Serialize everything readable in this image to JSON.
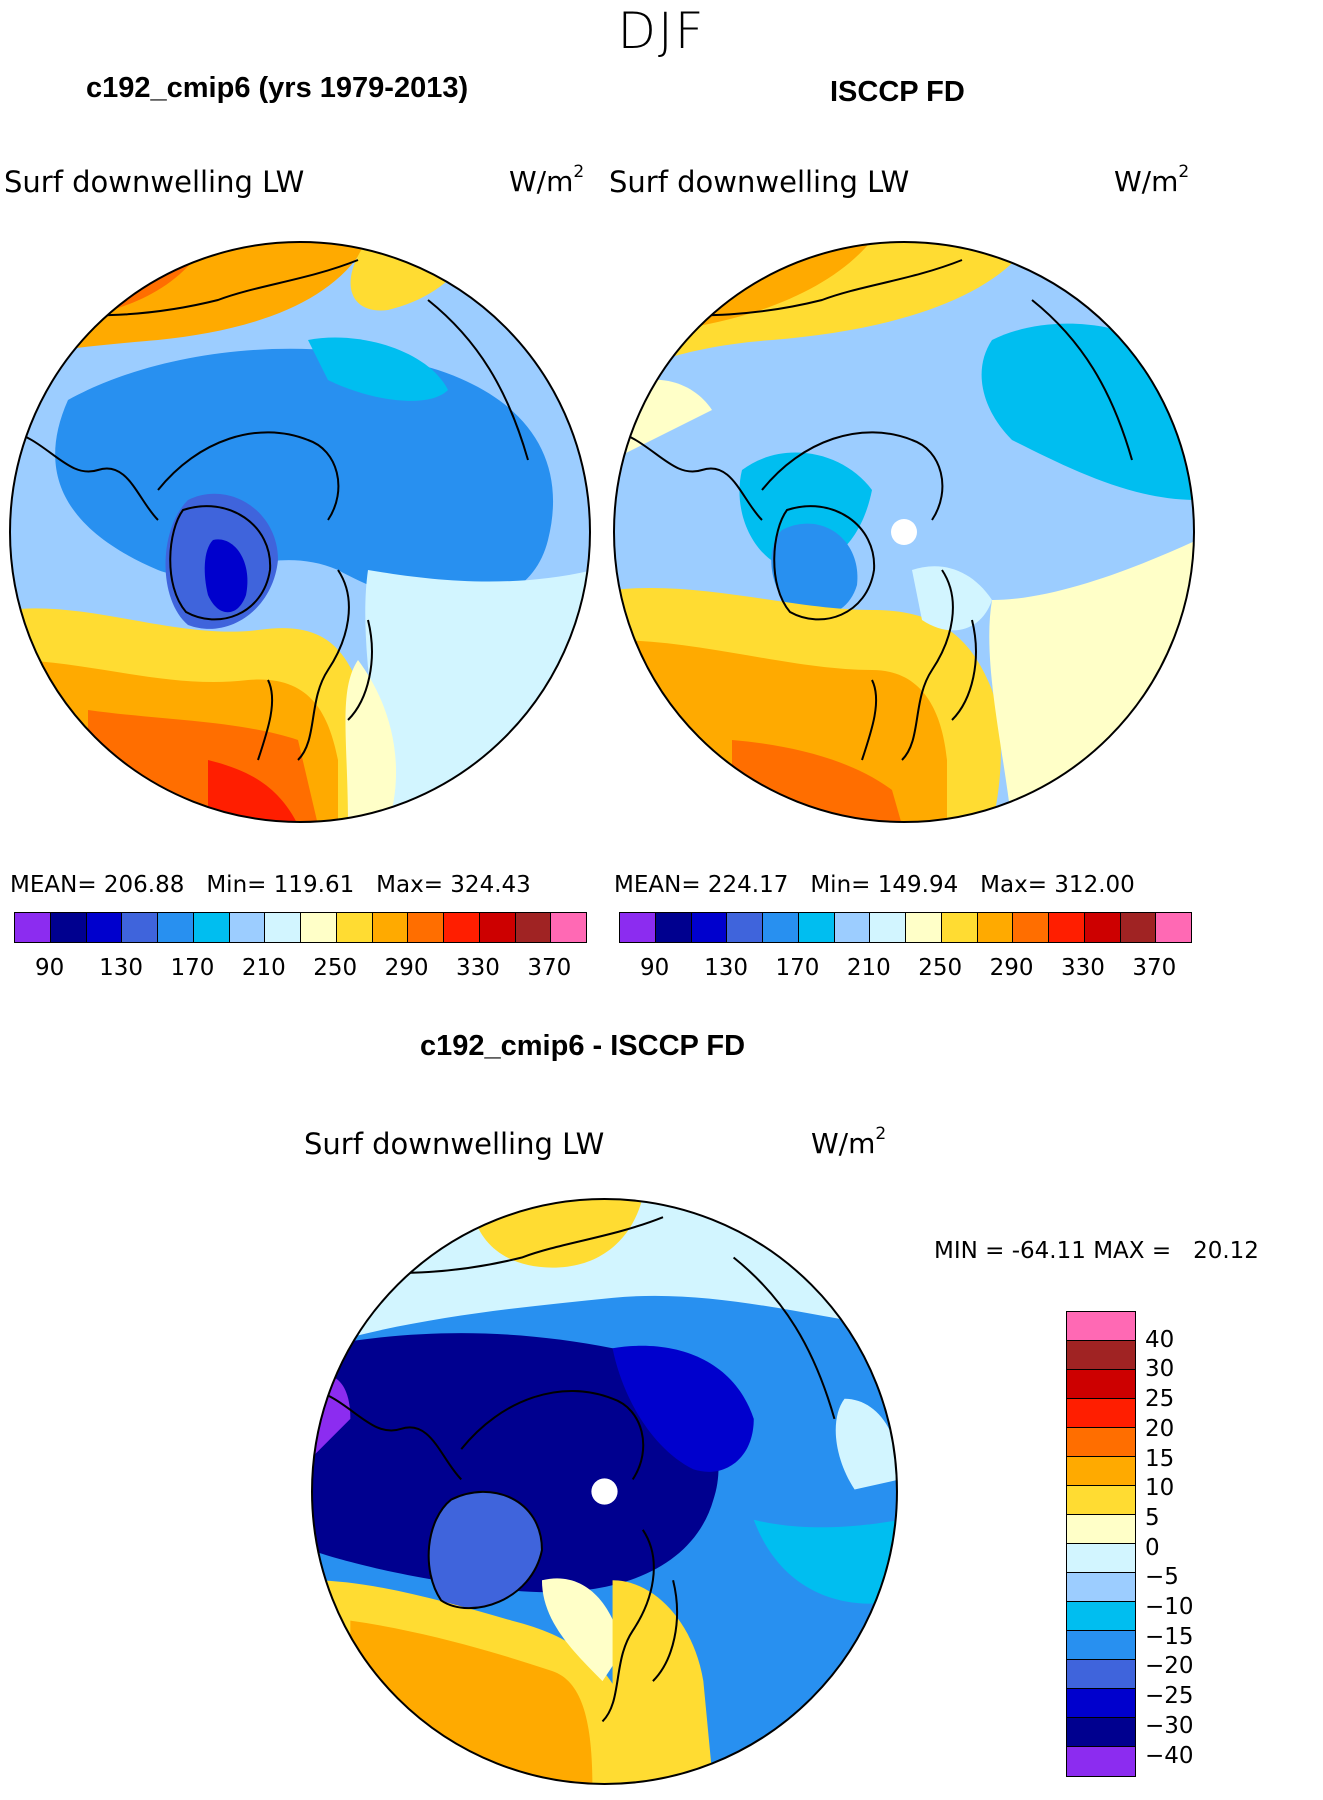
{
  "figure": {
    "season": "DJF"
  },
  "panels": {
    "model": {
      "title": "c192_cmip6 (yrs 1979-2013)",
      "variable": "Surf downwelling LW",
      "units_base": "W/m",
      "units_exp": "2",
      "mean_label": "MEAN=",
      "mean": "206.88",
      "min_label": "Min=",
      "min": "119.61",
      "max_label": "Max=",
      "max": "324.43"
    },
    "obs": {
      "title": "ISCCP FD",
      "variable": "Surf downwelling LW",
      "units_base": "W/m",
      "units_exp": "2",
      "mean_label": "MEAN=",
      "mean": "224.17",
      "min_label": "Min=",
      "min": "149.94",
      "max_label": "Max=",
      "max": "312.00"
    },
    "diff": {
      "title": "c192_cmip6 - ISCCP FD",
      "variable": "Surf downwelling LW",
      "units_base": "W/m",
      "units_exp": "2",
      "min_label": "MIN =",
      "min": "-64.11",
      "max_label": "MAX =",
      "max": "20.12"
    }
  },
  "colorbars": {
    "absolute": {
      "colors": [
        "#8c2cf0",
        "#00008f",
        "#0000cd",
        "#3f64dc",
        "#2890f0",
        "#00bef0",
        "#9ccdff",
        "#d2f5ff",
        "#ffffc8",
        "#ffdc32",
        "#ffaa00",
        "#ff6e00",
        "#ff1e00",
        "#cd0000",
        "#a02323",
        "#ff69b4"
      ],
      "ticks": [
        "90",
        "130",
        "170",
        "210",
        "250",
        "290",
        "330",
        "370"
      ]
    },
    "difference": {
      "colors": [
        "#ff69b4",
        "#a02323",
        "#cd0000",
        "#ff1e00",
        "#ff6e00",
        "#ffaa00",
        "#ffdc32",
        "#ffffc8",
        "#d2f5ff",
        "#9ccdff",
        "#00bef0",
        "#2890f0",
        "#3f64dc",
        "#0000cd",
        "#00008f",
        "#8c2cf0"
      ],
      "labels": [
        "40",
        "30",
        "25",
        "20",
        "15",
        "10",
        "5",
        "0",
        "−5",
        "−10",
        "−15",
        "−20",
        "−25",
        "−30",
        "−40"
      ]
    }
  },
  "chart_data": [
    {
      "type": "heatmap",
      "title": "c192_cmip6 (yrs 1979-2013)",
      "projection": "north polar stereographic",
      "variable": "Surf downwelling LW",
      "units": "W/m2",
      "mean": 206.88,
      "min": 119.61,
      "max": 324.43,
      "levels": [
        90,
        130,
        170,
        210,
        250,
        290,
        330,
        370
      ]
    },
    {
      "type": "heatmap",
      "title": "ISCCP FD",
      "projection": "north polar stereographic",
      "variable": "Surf downwelling LW",
      "units": "W/m2",
      "mean": 224.17,
      "min": 149.94,
      "max": 312.0,
      "levels": [
        90,
        130,
        170,
        210,
        250,
        290,
        330,
        370
      ]
    },
    {
      "type": "heatmap",
      "title": "c192_cmip6 - ISCCP FD",
      "projection": "north polar stereographic",
      "variable": "Surf downwelling LW",
      "units": "W/m2",
      "min": -64.11,
      "max": 20.12,
      "levels": [
        -40,
        -30,
        -25,
        -20,
        -15,
        -10,
        -5,
        0,
        5,
        10,
        15,
        20,
        25,
        30,
        40
      ]
    }
  ]
}
